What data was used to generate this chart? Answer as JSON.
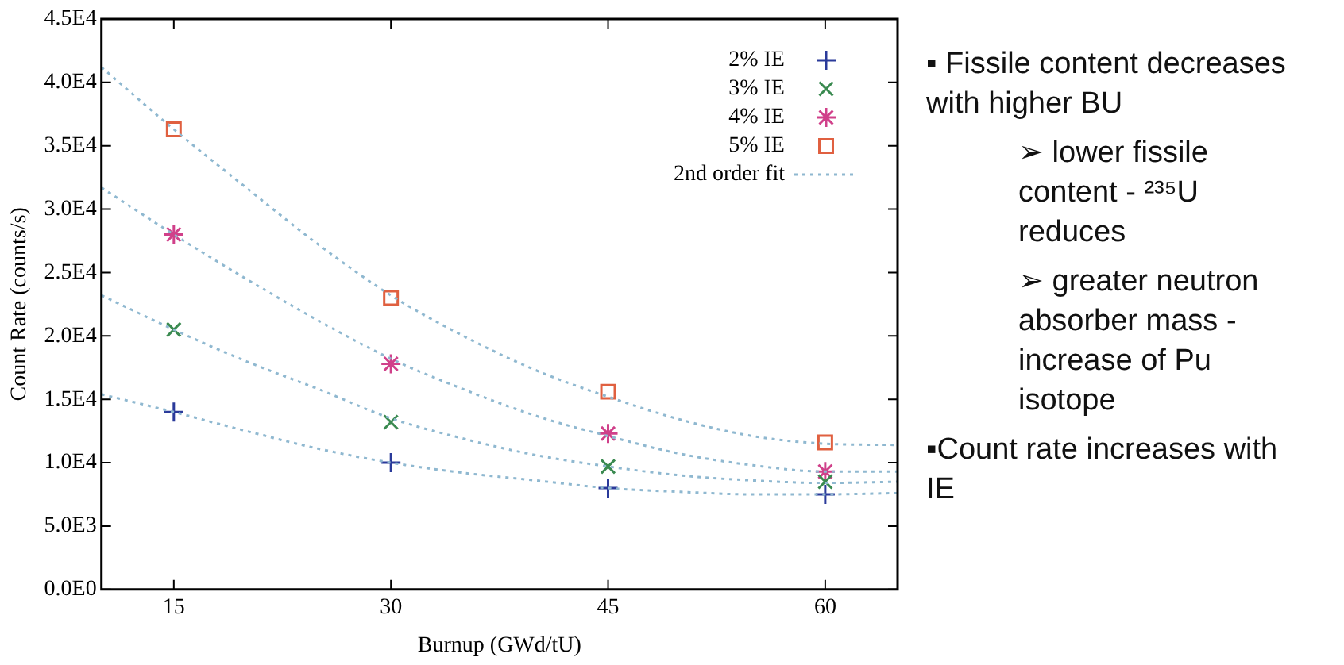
{
  "chart_data": {
    "type": "scatter",
    "xlabel": "Burnup (GWd/tU)",
    "ylabel": "Count Rate (counts/s)",
    "xlim": [
      10,
      65
    ],
    "xticks": [
      15,
      30,
      45,
      60
    ],
    "ylim": [
      0,
      45000
    ],
    "yticks": [
      {
        "value": 0,
        "label": "0.0E0"
      },
      {
        "value": 5000,
        "label": "5.0E3"
      },
      {
        "value": 10000,
        "label": "1.0E4"
      },
      {
        "value": 15000,
        "label": "1.5E4"
      },
      {
        "value": 20000,
        "label": "2.0E4"
      },
      {
        "value": 25000,
        "label": "2.5E4"
      },
      {
        "value": 30000,
        "label": "3.0E4"
      },
      {
        "value": 35000,
        "label": "3.5E4"
      },
      {
        "value": 40000,
        "label": "4.0E4"
      },
      {
        "value": 45000,
        "label": "4.5E4"
      }
    ],
    "grid": false,
    "legend": "top right",
    "series": [
      {
        "type": "line",
        "name": "2nd order fit",
        "color": "#8fb8d0",
        "line_style": "dotted",
        "marker": "none",
        "x": [
          10,
          15,
          20,
          25,
          30,
          35,
          40,
          45,
          50,
          55,
          60,
          65
        ],
        "values": [
          15400,
          14000,
          12500,
          11100,
          10000,
          9200,
          8600,
          8000,
          7700,
          7500,
          7500,
          7600
        ]
      },
      {
        "type": "line",
        "color": "#8fb8d0",
        "line_style": "dotted",
        "marker": "none",
        "x": [
          10,
          15,
          20,
          25,
          30,
          35,
          40,
          45,
          50,
          55,
          60,
          65
        ],
        "values": [
          23200,
          20500,
          18000,
          15800,
          13500,
          11900,
          10600,
          9700,
          9000,
          8600,
          8400,
          8500
        ]
      },
      {
        "type": "line",
        "color": "#8fb8d0",
        "line_style": "dotted",
        "marker": "none",
        "x": [
          10,
          15,
          20,
          25,
          30,
          35,
          40,
          45,
          50,
          55,
          60,
          65
        ],
        "values": [
          31700,
          28000,
          24500,
          21200,
          18200,
          15800,
          13700,
          12100,
          10700,
          9800,
          9300,
          9300
        ]
      },
      {
        "type": "line",
        "color": "#8fb8d0",
        "line_style": "dotted",
        "marker": "none",
        "x": [
          10,
          15,
          20,
          25,
          30,
          35,
          40,
          45,
          50,
          55,
          60,
          65
        ],
        "values": [
          41200,
          36300,
          31700,
          27200,
          23200,
          20000,
          17300,
          15200,
          13400,
          12100,
          11500,
          11400
        ]
      },
      {
        "name": "2% IE",
        "color": "#2a3a9a",
        "marker": "cross",
        "x": [
          15,
          30,
          45,
          60
        ],
        "values": [
          14000,
          10000,
          8000,
          7500
        ]
      },
      {
        "name": "3% IE",
        "color": "#3a8a50",
        "marker": "x",
        "x": [
          15,
          30,
          45,
          60
        ],
        "values": [
          20500,
          13200,
          9700,
          8500
        ]
      },
      {
        "name": "4% IE",
        "color": "#d0408a",
        "x": [
          15,
          30,
          45,
          60
        ],
        "values": [
          28000,
          17800,
          12300,
          9300
        ]
      },
      {
        "name": "5% IE",
        "color": "#e06040",
        "marker": "square",
        "x": [
          15,
          30,
          45,
          60
        ],
        "values": [
          36300,
          23000,
          15600,
          11600
        ]
      }
    ],
    "annotations": [
      "▪ Fissile content decreases with higher BU",
      "➢ lower fissile content - ²³⁵U reduces",
      "➢ greater neutron absorber mass - increase of Pu isotope",
      "▪Count rate increases with IE"
    ]
  }
}
